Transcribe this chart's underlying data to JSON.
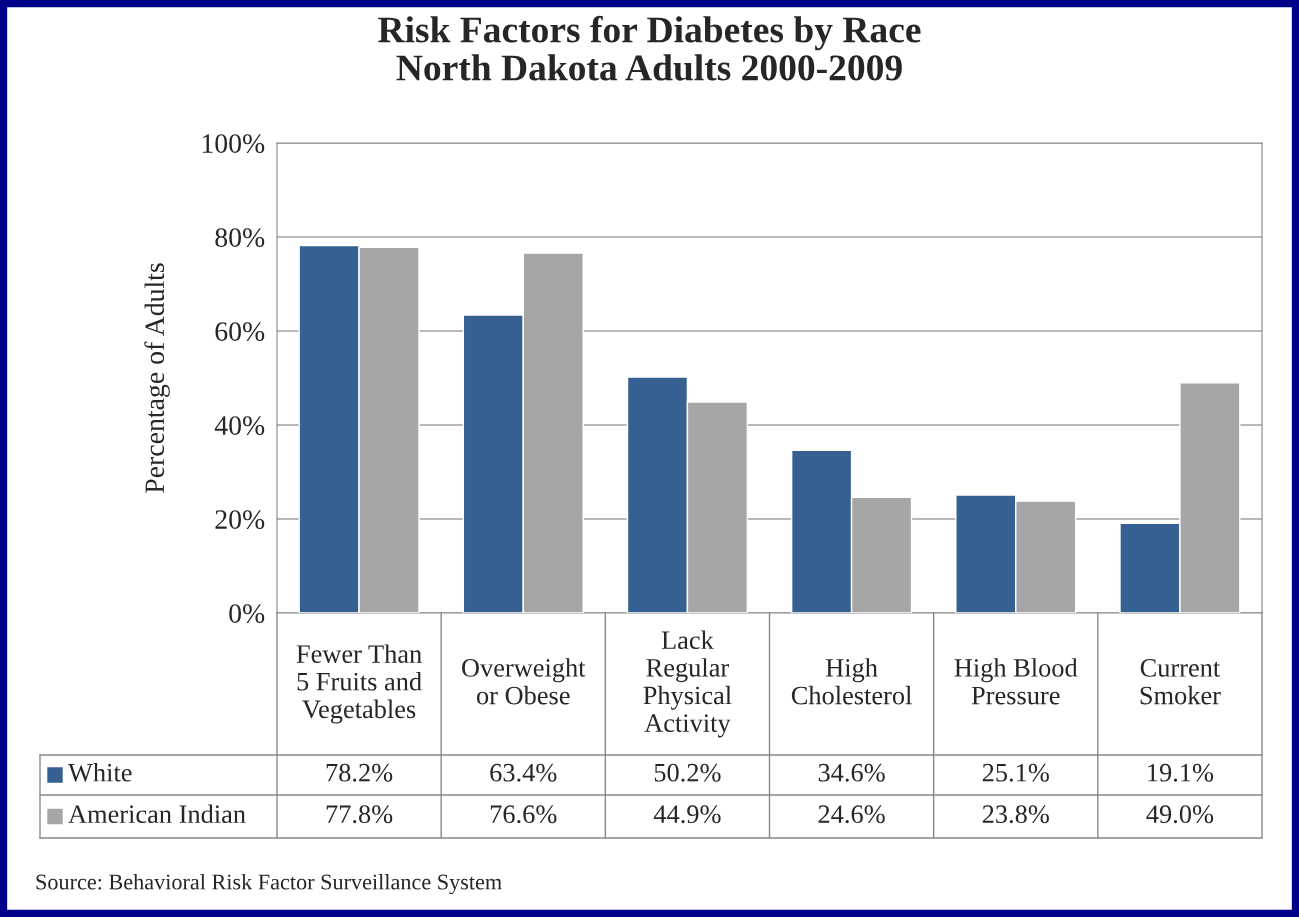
{
  "chart_data": {
    "type": "bar",
    "title": "Risk Factors for Diabetes by Race\nNorth Dakota Adults 2000-2009",
    "ylabel": "Percentage of Adults",
    "categories": [
      "Fewer Than\n5 Fruits and\nVegetables",
      "Overweight\nor Obese",
      "Lack\nRegular\nPhysical\nActivity",
      "High\nCholesterol",
      "High Blood\nPressure",
      "Current\nSmoker"
    ],
    "series": [
      {
        "name": "White",
        "color": "#366092",
        "values": [
          78.2,
          63.4,
          50.2,
          34.6,
          25.1,
          19.1
        ],
        "value_labels": [
          "78.2%",
          "63.4%",
          "50.2%",
          "34.6%",
          "25.1%",
          "19.1%"
        ]
      },
      {
        "name": "American Indian",
        "color": "#a6a6a6",
        "values": [
          77.8,
          76.6,
          44.9,
          24.6,
          23.8,
          49.0
        ],
        "value_labels": [
          "77.8%",
          "76.6%",
          "44.9%",
          "24.6%",
          "23.8%",
          "49.0%"
        ]
      }
    ],
    "ylim": [
      0,
      100
    ],
    "yticks": [
      {
        "value": 0,
        "label": "0%"
      },
      {
        "value": 20,
        "label": "20%"
      },
      {
        "value": 40,
        "label": "40%"
      },
      {
        "value": 60,
        "label": "60%"
      },
      {
        "value": 80,
        "label": "80%"
      },
      {
        "value": 100,
        "label": "100%"
      }
    ],
    "grid": "y",
    "legend": "bottom",
    "annotations": [
      "Source: Behavioral Risk Factor Surveillance System"
    ]
  }
}
